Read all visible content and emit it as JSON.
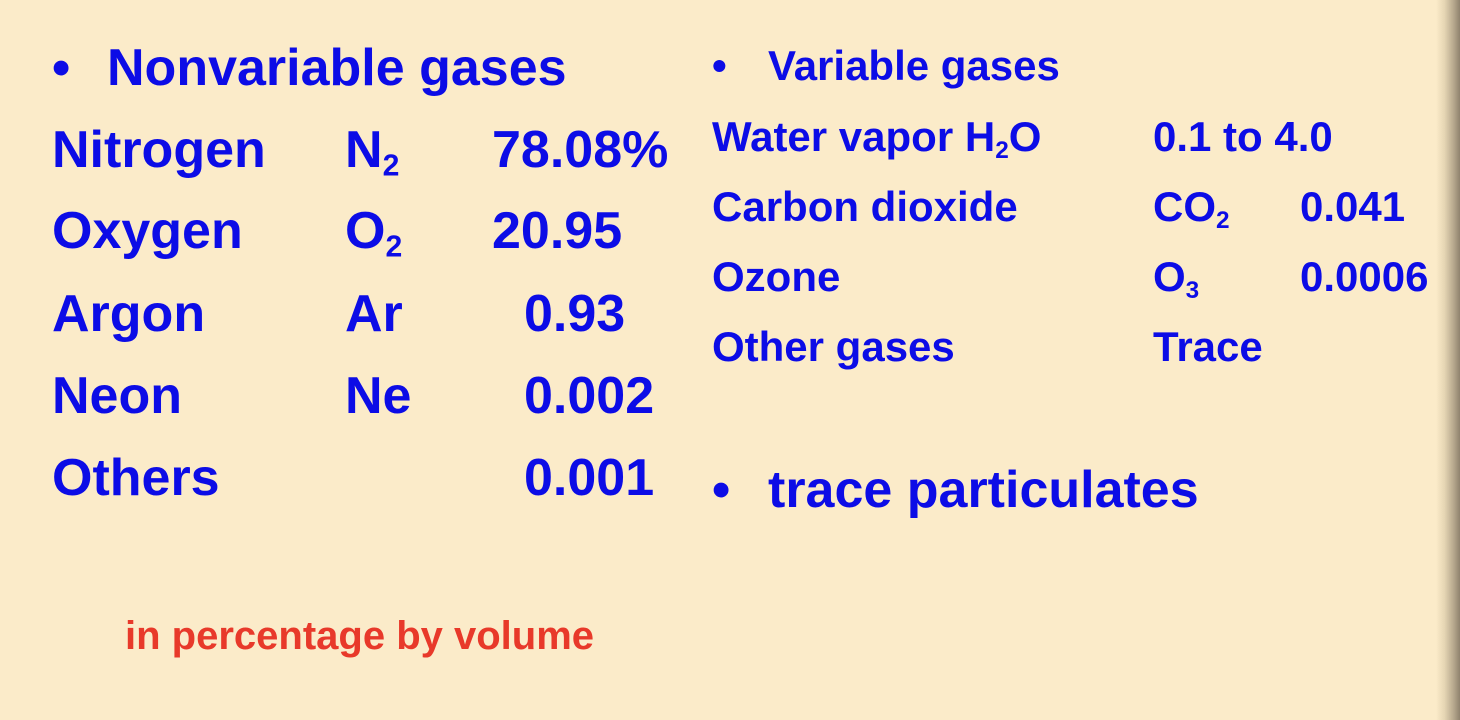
{
  "left": {
    "bullet": "•",
    "heading": "Nonvariable gases",
    "rows": [
      {
        "name": "Nitrogen",
        "symbol": "N",
        "symbol_sub": "2",
        "value": "78.08%"
      },
      {
        "name": "Oxygen",
        "symbol": "O",
        "symbol_sub": "2",
        "value": "20.95"
      },
      {
        "name": "Argon",
        "symbol": "Ar",
        "symbol_sub": "",
        "value": "0.93"
      },
      {
        "name": "Neon",
        "symbol": "Ne",
        "symbol_sub": "",
        "value": "0.002"
      },
      {
        "name": "Others",
        "symbol": "",
        "symbol_sub": "",
        "value": "0.001"
      }
    ]
  },
  "right": {
    "bullet": "•",
    "heading": "Variable gases",
    "water_row": {
      "name": "Water vapor",
      "symbol_pre": "H",
      "symbol_sub": "2",
      "symbol_post": "O",
      "value": "0.1 to 4.0"
    },
    "rows": [
      {
        "name": "Carbon dioxide",
        "symbol": "CO",
        "symbol_sub": "2",
        "value": "0.041"
      },
      {
        "name": "Ozone",
        "symbol": "O",
        "symbol_sub": "3",
        "value": "0.0006"
      },
      {
        "name": "Other gases",
        "symbol": "Trace",
        "symbol_sub": "",
        "value": ""
      }
    ],
    "bullet2": "•",
    "heading2": "trace particulates"
  },
  "footnote": "in percentage by volume",
  "colors": {
    "background": "#fbebc9",
    "text": "#0c0ce6",
    "footnote": "#e8392a"
  }
}
